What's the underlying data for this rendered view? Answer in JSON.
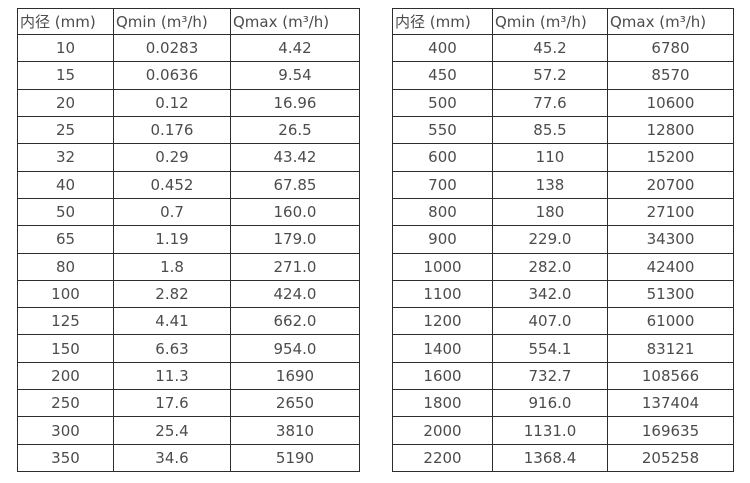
{
  "page": {
    "background_color": "#ffffff",
    "text_color": "#4c4c4c",
    "border_color": "#2d2d2d"
  },
  "tables": [
    {
      "name": "diameter-flow-table-left",
      "columns": [
        "内径 (mm)",
        "Qmin (m³/h)",
        "Qmax (m³/h)"
      ],
      "rows": [
        [
          "10",
          "0.0283",
          "4.42"
        ],
        [
          "15",
          "0.0636",
          "9.54"
        ],
        [
          "20",
          "0.12",
          "16.96"
        ],
        [
          "25",
          "0.176",
          "26.5"
        ],
        [
          "32",
          "0.29",
          "43.42"
        ],
        [
          "40",
          "0.452",
          "67.85"
        ],
        [
          "50",
          "0.7",
          "160.0"
        ],
        [
          "65",
          "1.19",
          "179.0"
        ],
        [
          "80",
          "1.8",
          "271.0"
        ],
        [
          "100",
          "2.82",
          "424.0"
        ],
        [
          "125",
          "4.41",
          "662.0"
        ],
        [
          "150",
          "6.63",
          "954.0"
        ],
        [
          "200",
          "11.3",
          "1690"
        ],
        [
          "250",
          "17.6",
          "2650"
        ],
        [
          "300",
          "25.4",
          "3810"
        ],
        [
          "350",
          "34.6",
          "5190"
        ]
      ]
    },
    {
      "name": "diameter-flow-table-right",
      "columns": [
        "内径 (mm)",
        "Qmin (m³/h)",
        "Qmax (m³/h)"
      ],
      "rows": [
        [
          "400",
          "45.2",
          "6780"
        ],
        [
          "450",
          "57.2",
          "8570"
        ],
        [
          "500",
          "77.6",
          "10600"
        ],
        [
          "550",
          "85.5",
          "12800"
        ],
        [
          "600",
          "110",
          "15200"
        ],
        [
          "700",
          "138",
          "20700"
        ],
        [
          "800",
          "180",
          "27100"
        ],
        [
          "900",
          "229.0",
          "34300"
        ],
        [
          "1000",
          "282.0",
          "42400"
        ],
        [
          "1100",
          "342.0",
          "51300"
        ],
        [
          "1200",
          "407.0",
          "61000"
        ],
        [
          "1400",
          "554.1",
          "83121"
        ],
        [
          "1600",
          "732.7",
          "108566"
        ],
        [
          "1800",
          "916.0",
          "137404"
        ],
        [
          "2000",
          "1131.0",
          "169635"
        ],
        [
          "2200",
          "1368.4",
          "205258"
        ]
      ]
    }
  ]
}
